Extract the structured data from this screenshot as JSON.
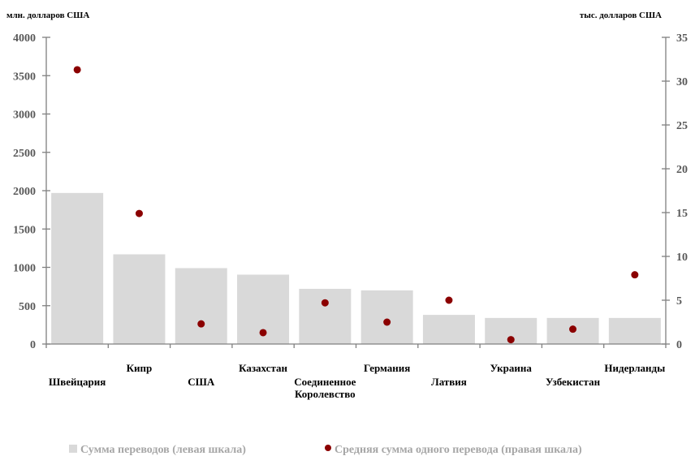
{
  "chart_data": {
    "type": "bar",
    "categories": [
      "Швейцария",
      "Кипр",
      "США",
      "Казахстан",
      "Соединенное Королевство",
      "Германия",
      "Латвия",
      "Украина",
      "Узбекистан",
      "Нидерланды"
    ],
    "category_label_lines": [
      [
        "Швейцария"
      ],
      [
        "Кипр"
      ],
      [
        "США"
      ],
      [
        "Казахстан"
      ],
      [
        "Соединенное",
        "Королевство"
      ],
      [
        "Германия"
      ],
      [
        "Латвия"
      ],
      [
        "Украина"
      ],
      [
        "Узбекистан"
      ],
      [
        "Нидерланды"
      ]
    ],
    "series": [
      {
        "name": "Сумма переводов (левая шкала)",
        "type": "bar",
        "axis": "left",
        "color": "#d9d9d9",
        "values": [
          1970,
          1170,
          990,
          905,
          720,
          700,
          380,
          340,
          340,
          340
        ]
      },
      {
        "name": "Средняя сумма одного перевода (правая шкала)",
        "type": "scatter",
        "axis": "right",
        "color": "#8b0000",
        "values": [
          31.3,
          14.9,
          2.3,
          1.3,
          4.7,
          2.5,
          5.0,
          0.5,
          1.7,
          7.9
        ]
      }
    ],
    "y_left": {
      "unit_label": "млн. долларов США",
      "ylim": [
        0,
        4000
      ],
      "ticks": [
        "0",
        "500",
        "1000",
        "1500",
        "2000",
        "2500",
        "3000",
        "3500",
        "4000"
      ]
    },
    "y_right": {
      "unit_label": "тыс. долларов США",
      "ylim": [
        0,
        35
      ],
      "ticks": [
        "0",
        "5",
        "10",
        "15",
        "20",
        "25",
        "30",
        "35"
      ]
    },
    "grid": false,
    "legend_position": "bottom",
    "label_offset_pattern": "alternating"
  }
}
